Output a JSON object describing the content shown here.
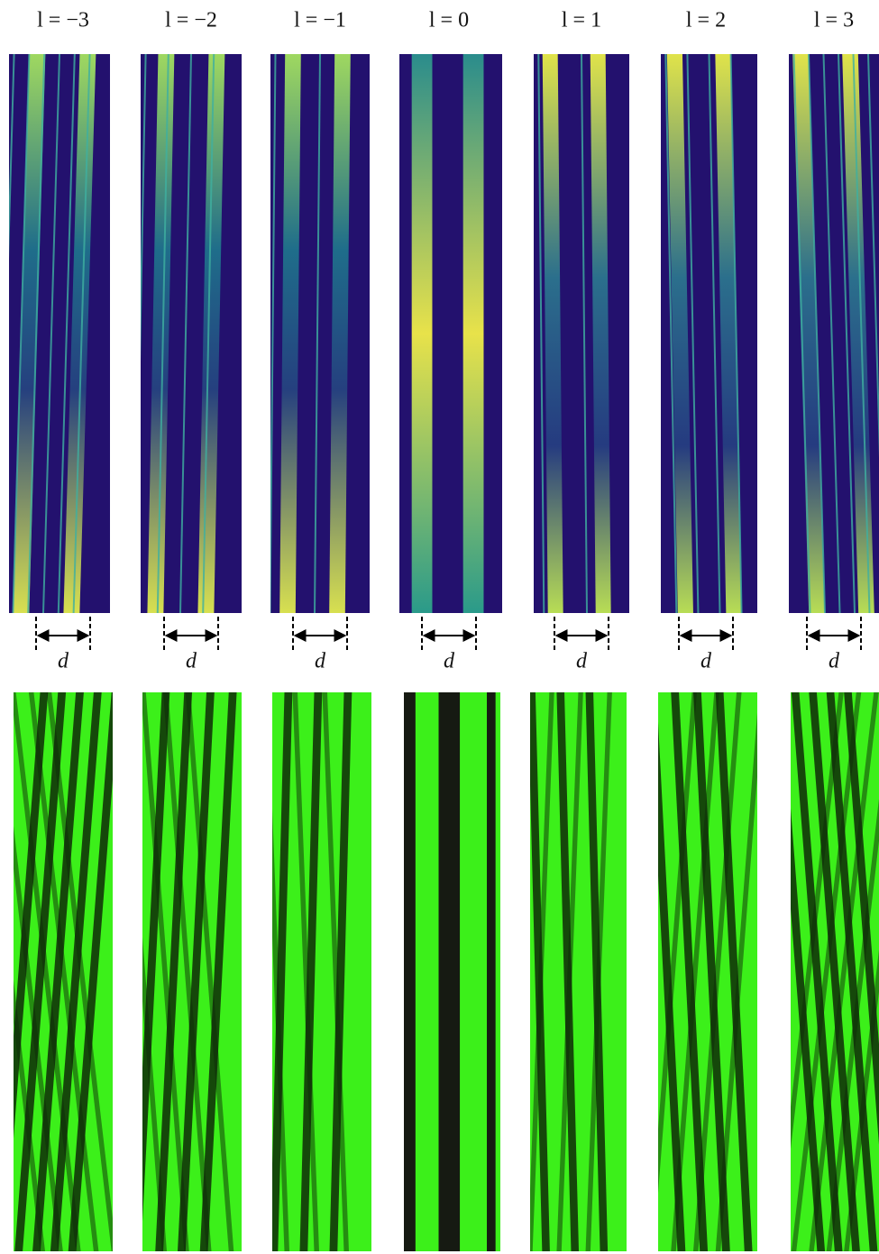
{
  "columns": [
    {
      "label": "l = −3",
      "width_label": "d"
    },
    {
      "label": "l = −2",
      "width_label": "d"
    },
    {
      "label": "l = −1",
      "width_label": "d"
    },
    {
      "label": "l = 0",
      "width_label": "d"
    },
    {
      "label": "l = 1",
      "width_label": "d"
    },
    {
      "label": "l = 2",
      "width_label": "d"
    },
    {
      "label": "l = 3",
      "width_label": "d"
    }
  ]
}
